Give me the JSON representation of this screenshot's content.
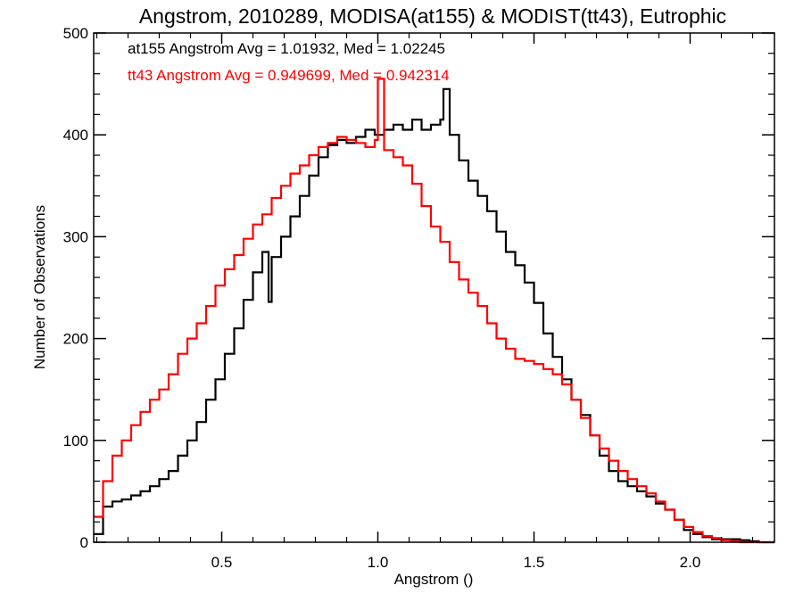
{
  "chart_data": {
    "type": "line",
    "title": "Angstrom, 2010289, MODISA(at155) & MODIST(tt43), Eutrophic",
    "xlabel": "Angstrom ()",
    "ylabel": "Number of Observations",
    "xlim": [
      0.09,
      2.27
    ],
    "ylim": [
      0,
      500
    ],
    "xticks": [
      0.5,
      1.0,
      1.5,
      2.0
    ],
    "xtick_labels": [
      "0.5",
      "1.0",
      "1.5",
      "2.0"
    ],
    "yticks": [
      0,
      100,
      200,
      300,
      400,
      500
    ],
    "ytick_labels": [
      "0",
      "100",
      "200",
      "300",
      "400",
      "500"
    ],
    "grid": false,
    "series": [
      {
        "name": "at155",
        "color": "#000000",
        "annotation": "at155 Angstrom Avg = 1.01932, Med = 1.02245",
        "x": [
          0.09,
          0.12,
          0.15,
          0.18,
          0.21,
          0.24,
          0.27,
          0.3,
          0.33,
          0.36,
          0.39,
          0.42,
          0.45,
          0.48,
          0.51,
          0.54,
          0.57,
          0.6,
          0.63,
          0.65,
          0.66,
          0.69,
          0.72,
          0.75,
          0.78,
          0.81,
          0.84,
          0.87,
          0.9,
          0.93,
          0.96,
          0.99,
          1.02,
          1.05,
          1.08,
          1.11,
          1.14,
          1.17,
          1.2,
          1.21,
          1.23,
          1.26,
          1.29,
          1.32,
          1.35,
          1.38,
          1.41,
          1.44,
          1.47,
          1.5,
          1.53,
          1.56,
          1.59,
          1.62,
          1.65,
          1.68,
          1.71,
          1.74,
          1.77,
          1.8,
          1.83,
          1.86,
          1.89,
          1.92,
          1.95,
          1.98,
          2.01,
          2.04,
          2.07,
          2.1,
          2.13,
          2.16,
          2.19,
          2.22,
          2.27
        ],
        "y": [
          8,
          35,
          40,
          42,
          46,
          50,
          55,
          62,
          70,
          85,
          100,
          118,
          140,
          160,
          185,
          210,
          238,
          265,
          285,
          236,
          280,
          300,
          320,
          340,
          360,
          378,
          390,
          395,
          392,
          398,
          405,
          400,
          405,
          410,
          405,
          415,
          405,
          410,
          415,
          445,
          400,
          375,
          355,
          340,
          325,
          305,
          285,
          272,
          255,
          235,
          205,
          182,
          160,
          140,
          125,
          105,
          85,
          70,
          60,
          55,
          50,
          45,
          38,
          32,
          22,
          12,
          8,
          5,
          3,
          3,
          3,
          2,
          1,
          0,
          0
        ]
      },
      {
        "name": "tt43",
        "color": "#ff0000",
        "annotation": "tt43 Angstrom Avg = 0.949699, Med = 0.942314",
        "x": [
          0.09,
          0.12,
          0.15,
          0.18,
          0.21,
          0.24,
          0.27,
          0.3,
          0.33,
          0.36,
          0.39,
          0.42,
          0.45,
          0.48,
          0.51,
          0.54,
          0.57,
          0.6,
          0.63,
          0.66,
          0.69,
          0.72,
          0.75,
          0.78,
          0.81,
          0.84,
          0.87,
          0.9,
          0.93,
          0.96,
          0.99,
          1.0,
          1.02,
          1.05,
          1.08,
          1.11,
          1.14,
          1.17,
          1.2,
          1.23,
          1.26,
          1.29,
          1.32,
          1.35,
          1.38,
          1.41,
          1.44,
          1.47,
          1.5,
          1.53,
          1.56,
          1.59,
          1.62,
          1.65,
          1.68,
          1.71,
          1.74,
          1.77,
          1.8,
          1.83,
          1.86,
          1.89,
          1.92,
          1.95,
          1.98,
          2.01,
          2.04,
          2.07,
          2.1,
          2.13,
          2.16,
          2.19,
          2.22,
          2.27
        ],
        "y": [
          25,
          60,
          85,
          100,
          115,
          128,
          140,
          150,
          165,
          185,
          200,
          215,
          232,
          252,
          268,
          282,
          298,
          312,
          322,
          338,
          350,
          362,
          370,
          380,
          388,
          392,
          398,
          395,
          392,
          388,
          395,
          455,
          385,
          378,
          370,
          352,
          330,
          310,
          295,
          275,
          258,
          245,
          232,
          215,
          200,
          190,
          180,
          178,
          175,
          170,
          165,
          155,
          140,
          122,
          105,
          92,
          80,
          70,
          62,
          55,
          48,
          40,
          32,
          22,
          15,
          10,
          6,
          4,
          2,
          1,
          0,
          0,
          0,
          0
        ]
      }
    ]
  }
}
